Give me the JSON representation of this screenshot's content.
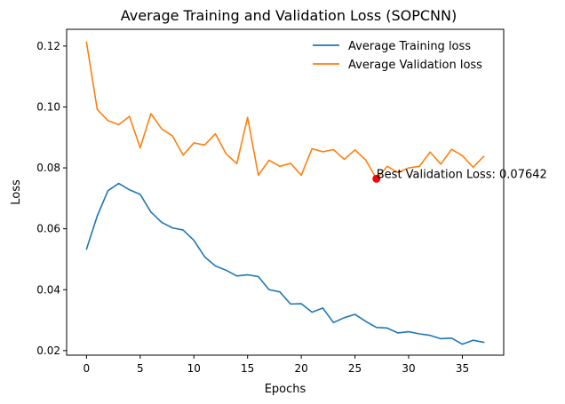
{
  "chart_data": {
    "type": "line",
    "title": "Average Training and Validation Loss (SOPCNN)",
    "xlabel": "Epochs",
    "ylabel": "Loss",
    "xlim": [
      -1.85,
      38.85
    ],
    "ylim": [
      0.0185,
      0.1255
    ],
    "xticks": [
      0,
      5,
      10,
      15,
      20,
      25,
      30,
      35
    ],
    "yticks": [
      0.02,
      0.04,
      0.06,
      0.08,
      0.1,
      0.12
    ],
    "ytick_labels": [
      "0.02",
      "0.04",
      "0.06",
      "0.08",
      "0.10",
      "0.12"
    ],
    "grid": false,
    "legend_position": "top-right",
    "x": [
      0,
      1,
      2,
      3,
      4,
      5,
      6,
      7,
      8,
      9,
      10,
      11,
      12,
      13,
      14,
      15,
      16,
      17,
      18,
      19,
      20,
      21,
      22,
      23,
      24,
      25,
      26,
      27,
      28,
      29,
      30,
      31,
      32,
      33,
      34,
      35,
      36,
      37
    ],
    "series": [
      {
        "name": "Average Training loss",
        "color": "#1f77b4",
        "values": [
          0.0533,
          0.0642,
          0.0725,
          0.0749,
          0.0728,
          0.0713,
          0.0655,
          0.0621,
          0.0603,
          0.0596,
          0.0562,
          0.0508,
          0.0478,
          0.0464,
          0.0445,
          0.0449,
          0.0443,
          0.04,
          0.0393,
          0.0353,
          0.0354,
          0.0326,
          0.034,
          0.0292,
          0.0308,
          0.0319,
          0.0296,
          0.0276,
          0.0274,
          0.0258,
          0.0262,
          0.0255,
          0.025,
          0.0239,
          0.0241,
          0.0221,
          0.0234,
          0.0227
        ]
      },
      {
        "name": "Average Validation loss",
        "color": "#ff7f0e",
        "values": [
          0.1213,
          0.0992,
          0.0955,
          0.0942,
          0.0969,
          0.0866,
          0.0978,
          0.0928,
          0.0905,
          0.0842,
          0.0882,
          0.0875,
          0.0912,
          0.0846,
          0.0814,
          0.0966,
          0.0776,
          0.0825,
          0.0805,
          0.0815,
          0.0776,
          0.0863,
          0.0853,
          0.086,
          0.0828,
          0.0859,
          0.0826,
          0.0764,
          0.0805,
          0.0785,
          0.08,
          0.0805,
          0.0852,
          0.0812,
          0.0861,
          0.084,
          0.0802,
          0.0838
        ]
      }
    ],
    "annotation": {
      "text": "Best Validation Loss: 0.07642",
      "x": 27,
      "y": 0.07642,
      "marker_color": "#ff0000"
    }
  }
}
